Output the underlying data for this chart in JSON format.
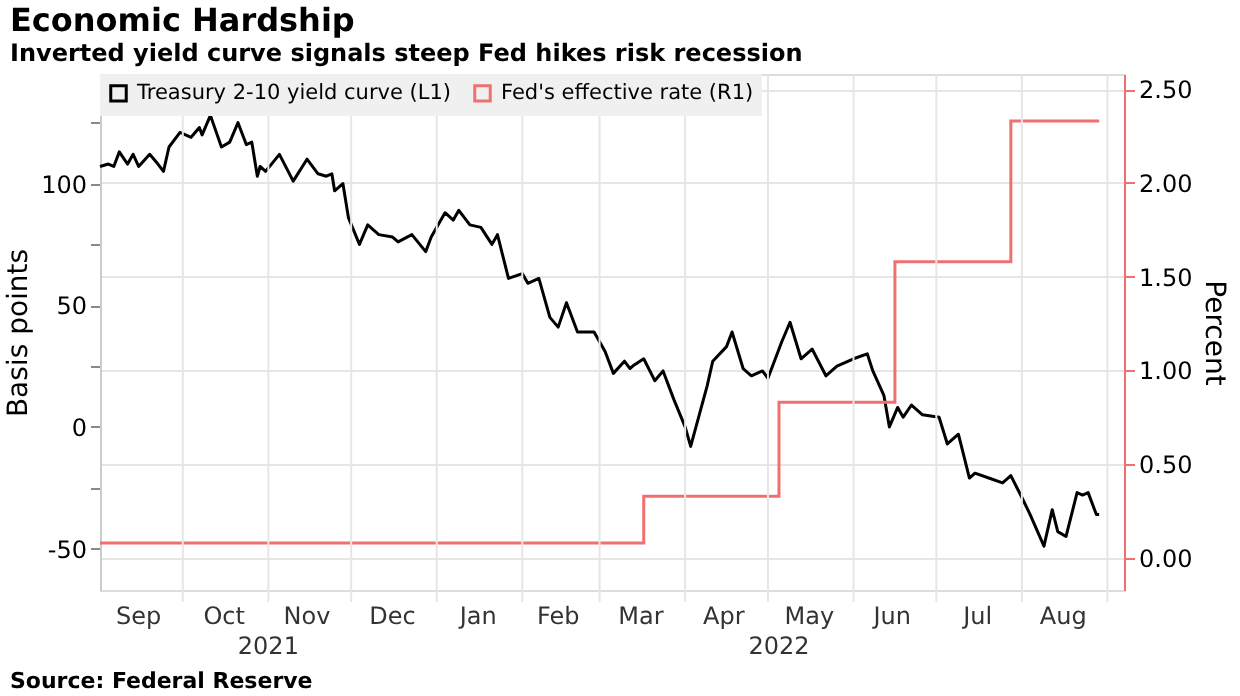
{
  "chart_data": {
    "type": "line",
    "title": "Economic Hardship",
    "subtitle": "Inverted yield curve signals steep Fed hikes risk recession",
    "ylabel": "Basis points",
    "y2label": "Percent",
    "annotations": [
      "2021",
      "2022",
      "Source: Federal Reserve"
    ],
    "xlim": [
      "2021-09-01",
      "2022-09-07"
    ],
    "xticks": [
      {
        "value": "2021-10-01",
        "label": null
      },
      {
        "value": "2021-11-01",
        "label": null
      },
      {
        "value": "2021-12-01",
        "label": null
      },
      {
        "value": "2022-01-01",
        "label": null
      },
      {
        "value": "2022-02-01",
        "label": null
      },
      {
        "value": "2022-03-01",
        "label": null
      },
      {
        "value": "2022-04-01",
        "label": null
      },
      {
        "value": "2022-05-01",
        "label": null
      },
      {
        "value": "2022-06-01",
        "label": null
      },
      {
        "value": "2022-07-01",
        "label": null
      },
      {
        "value": "2022-08-01",
        "label": null
      },
      {
        "value": "2022-09-01",
        "label": null
      },
      {
        "value": "2021-09-15",
        "label": "Sep"
      },
      {
        "value": "2021-10-16",
        "label": "Oct"
      },
      {
        "value": "2021-11-15",
        "label": "Nov"
      },
      {
        "value": "2021-12-16",
        "label": "Dec"
      },
      {
        "value": "2022-01-16",
        "label": "Jan"
      },
      {
        "value": "2022-02-14",
        "label": "Feb"
      },
      {
        "value": "2022-03-16",
        "label": "Mar"
      },
      {
        "value": "2022-04-15",
        "label": "Apr"
      },
      {
        "value": "2022-05-16",
        "label": "May"
      },
      {
        "value": "2022-06-15",
        "label": "Jun"
      },
      {
        "value": "2022-07-16",
        "label": "Jul"
      },
      {
        "value": "2022-08-16",
        "label": "Aug"
      }
    ],
    "ylim": [
      -67,
      145
    ],
    "yticks": [
      -50,
      {
        "value": -25,
        "label": null
      },
      0,
      {
        "value": 25,
        "label": null
      },
      50,
      {
        "value": 75,
        "label": null
      },
      100,
      {
        "value": 125,
        "label": null
      }
    ],
    "y2lim": [
      -0.17,
      2.58
    ],
    "y2ticks": [
      {
        "value": 0,
        "label": "0.00"
      },
      {
        "value": 0.5,
        "label": "0.50"
      },
      {
        "value": 1,
        "label": "1.00"
      },
      {
        "value": 1.5,
        "label": "1.50"
      },
      {
        "value": 2,
        "label": "2.00"
      },
      {
        "value": 2.5,
        "label": "2.50"
      }
    ],
    "grid": true,
    "legend": "top left",
    "series": [
      {
        "name": "Treasury 2-10 yield curve (L1)",
        "color": "#000000",
        "x": [
          "2021-09-01",
          "2021-09-04",
          "2021-09-06",
          "2021-09-08",
          "2021-09-11",
          "2021-09-13",
          "2021-09-15",
          "2021-09-19",
          "2021-09-22",
          "2021-09-24",
          "2021-09-26",
          "2021-09-30",
          "2021-10-04",
          "2021-10-07",
          "2021-10-08",
          "2021-10-11",
          "2021-10-15",
          "2021-10-18",
          "2021-10-21",
          "2021-10-24",
          "2021-10-26",
          "2021-10-28",
          "2021-10-29",
          "2021-10-31",
          "2021-11-05",
          "2021-11-10",
          "2021-11-15",
          "2021-11-19",
          "2021-11-22",
          "2021-11-24",
          "2021-11-25",
          "2021-11-28",
          "2021-11-30",
          "2021-12-04",
          "2021-12-07",
          "2021-12-11",
          "2021-12-16",
          "2021-12-18",
          "2021-12-23",
          "2021-12-28",
          "2021-12-30",
          "2022-01-04",
          "2022-01-07",
          "2022-01-09",
          "2022-01-13",
          "2022-01-17",
          "2022-01-21",
          "2022-01-23",
          "2022-01-27",
          "2022-02-01",
          "2022-02-03",
          "2022-02-07",
          "2022-02-11",
          "2022-02-14",
          "2022-02-17",
          "2022-02-21",
          "2022-02-27",
          "2022-03-03",
          "2022-03-06",
          "2022-03-10",
          "2022-03-12",
          "2022-03-13",
          "2022-03-17",
          "2022-03-21",
          "2022-03-24",
          "2022-03-28",
          "2022-04-01",
          "2022-04-03",
          "2022-04-09",
          "2022-04-11",
          "2022-04-16",
          "2022-04-18",
          "2022-04-22",
          "2022-04-25",
          "2022-04-29",
          "2022-05-01",
          "2022-05-06",
          "2022-05-09",
          "2022-05-13",
          "2022-05-17",
          "2022-05-22",
          "2022-05-26",
          "2022-06-01",
          "2022-06-06",
          "2022-06-08",
          "2022-06-12",
          "2022-06-14",
          "2022-06-17",
          "2022-06-19",
          "2022-06-22",
          "2022-06-26",
          "2022-07-02",
          "2022-07-05",
          "2022-07-09",
          "2022-07-13",
          "2022-07-15",
          "2022-07-20",
          "2022-07-25",
          "2022-07-28",
          "2022-08-01",
          "2022-08-04",
          "2022-08-09",
          "2022-08-12",
          "2022-08-14",
          "2022-08-17",
          "2022-08-21",
          "2022-08-23",
          "2022-08-25",
          "2022-08-28",
          "2022-08-29"
        ],
        "values": [
          107,
          108,
          107,
          113,
          108,
          112,
          107,
          112,
          108,
          105,
          115,
          121,
          119,
          123,
          120,
          128,
          115,
          117,
          125,
          116,
          117,
          103,
          107,
          105,
          112,
          101,
          110,
          104,
          103,
          104,
          97,
          100,
          86,
          75,
          83,
          79,
          78,
          76,
          79,
          72,
          78,
          88,
          85,
          89,
          83,
          82,
          75,
          79,
          61,
          63,
          59,
          61,
          45,
          41,
          51,
          39,
          39,
          31,
          22,
          27,
          24,
          25,
          28,
          19,
          23,
          11,
          0,
          -8,
          17,
          27,
          33,
          39,
          24,
          21,
          23,
          20,
          35,
          43,
          28,
          32,
          21,
          25,
          28,
          30,
          23,
          13,
          0,
          8,
          4,
          9,
          5,
          4,
          -7,
          -3,
          -21,
          -19,
          -21,
          -23,
          -20,
          -29,
          -36,
          -49,
          -34,
          -43,
          -45,
          -27,
          -28,
          -27,
          -36,
          -36
        ]
      },
      {
        "name": "Fed's effective rate (R1)",
        "color": "#f07070",
        "type": "step",
        "axis": "y2",
        "x": [
          "2021-09-01",
          "2022-03-17",
          "2022-05-05",
          "2022-06-16",
          "2022-07-28",
          "2022-08-29"
        ],
        "values": [
          0.08,
          0.33,
          0.83,
          1.58,
          2.33,
          2.33
        ]
      }
    ]
  }
}
